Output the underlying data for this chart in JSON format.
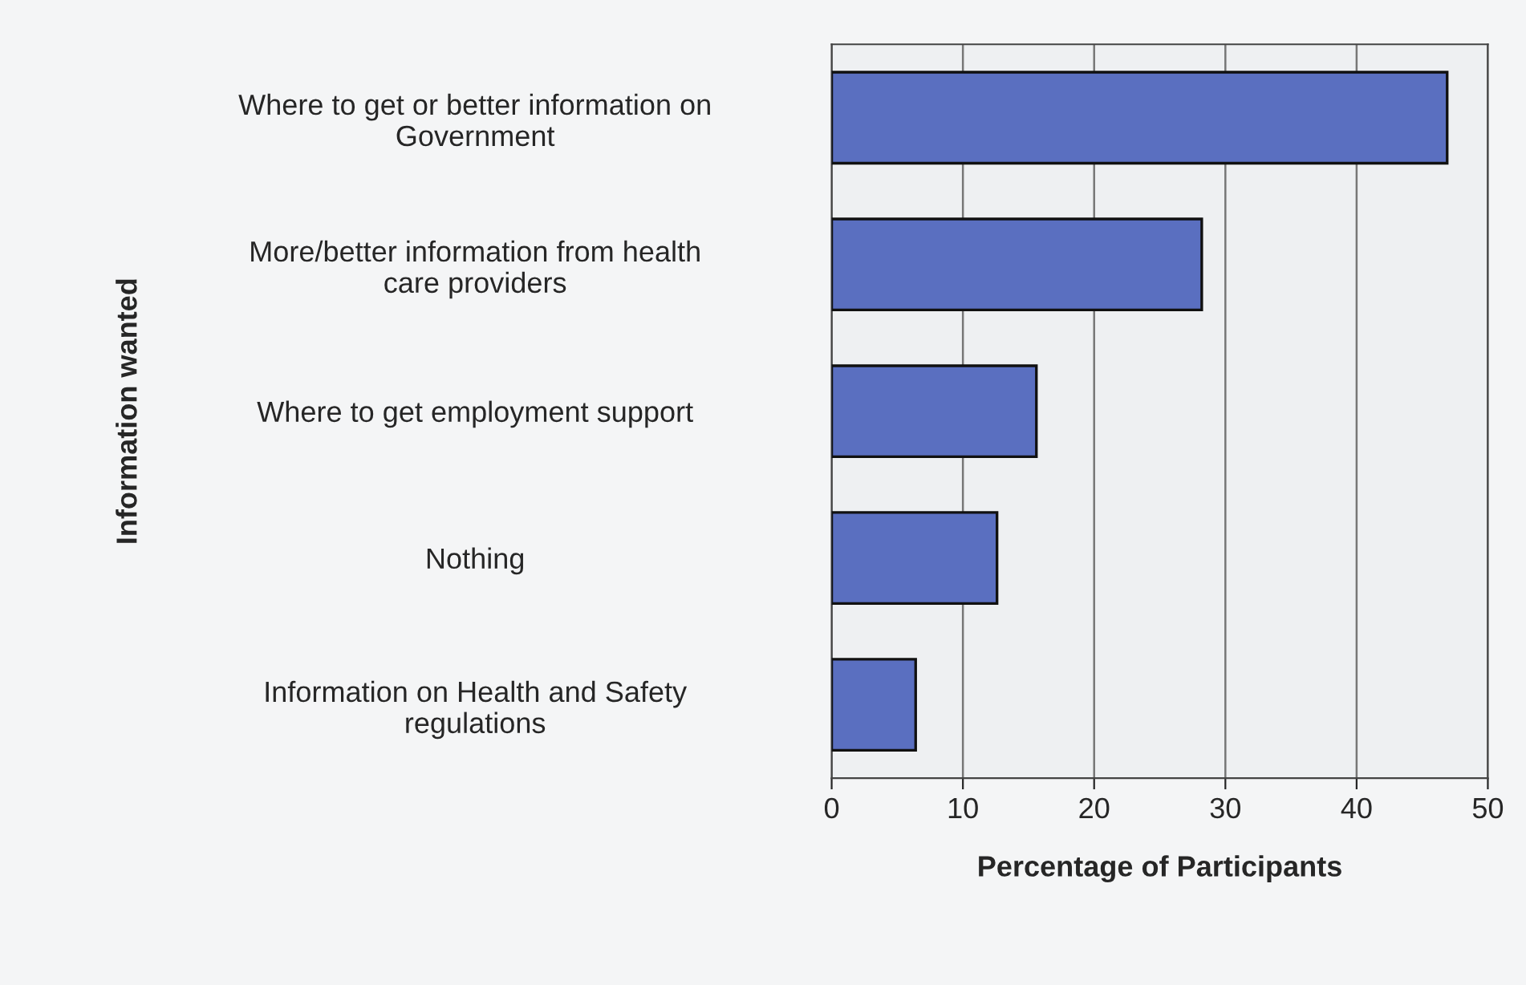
{
  "chart_data": {
    "type": "bar",
    "orientation": "horizontal",
    "xlabel": "Percentage of Participants",
    "ylabel": "Information wanted",
    "categories": [
      "Where to get or better information on\nGovernment",
      "More/better information from health\ncare providers",
      "Where to get employment support",
      "Nothing",
      "Information on Health and Safety\nregulations"
    ],
    "values": [
      46.9,
      28.2,
      15.6,
      12.6,
      6.4
    ],
    "color": "#5a6fc0",
    "xlim": [
      0,
      50
    ],
    "xticks": [
      0,
      10,
      20,
      30,
      40,
      50
    ],
    "grid": "x",
    "legend": false
  }
}
